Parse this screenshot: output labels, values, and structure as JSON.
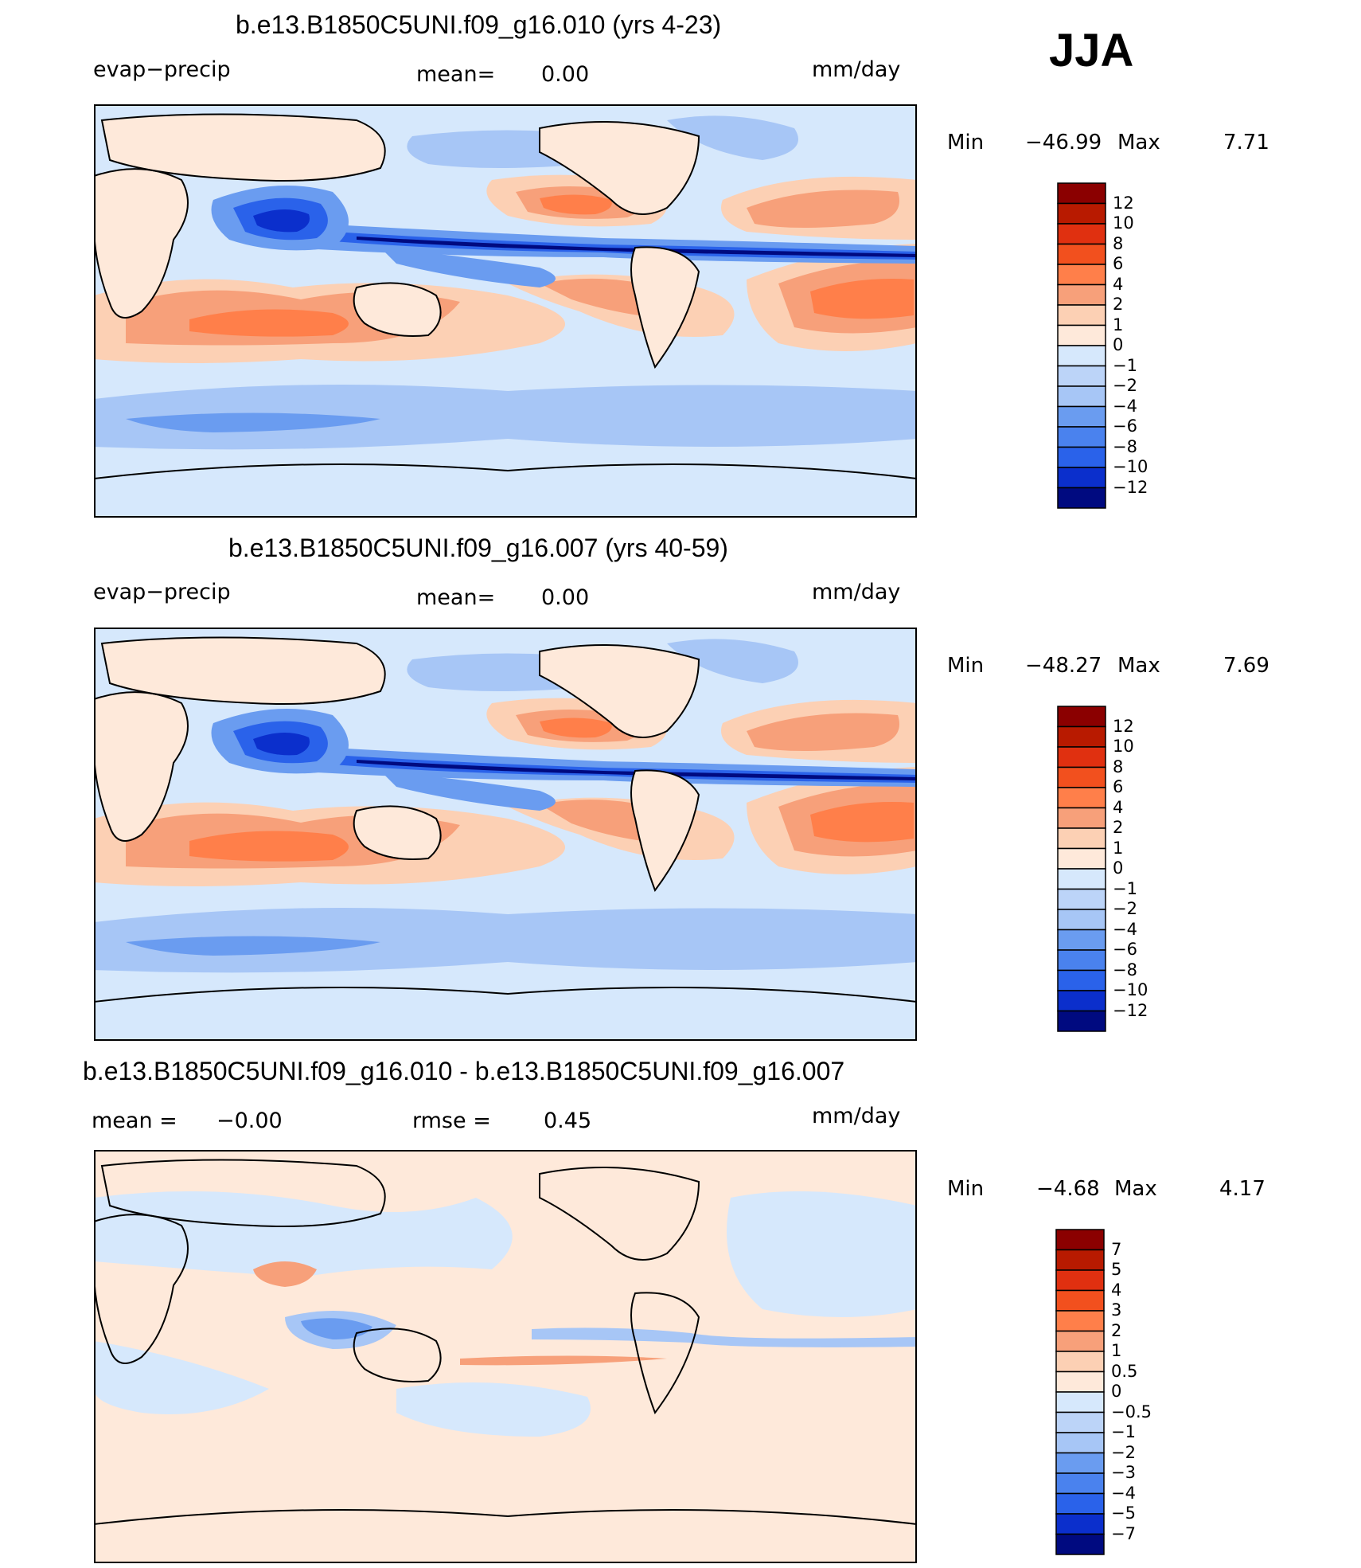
{
  "season": "JJA",
  "colors": {
    "dark_red": "#8b0000",
    "red": "#e03010",
    "orange": "#ff7f4a",
    "salmon": "#f7a07a",
    "peach": "#fcd0b4",
    "light_peach": "#fee9da",
    "light_blue": "#d6e8fc",
    "blue": "#a7c6f6",
    "mid_blue": "#6a9cf0",
    "strong_blue": "#2a62ea",
    "deep_blue": "#0b2fcc",
    "navy": "#000a80",
    "coast": "#000000"
  },
  "panels": [
    {
      "title": "b.e13.B1850C5UNI.f09_g16.010 (yrs 4-23)",
      "left_label": "evap−precip",
      "mean_label": "mean=",
      "mean_value": "0.00",
      "units": "mm/day",
      "min_label": "Min",
      "min_value": "−46.99",
      "max_label": "Max",
      "max_value": "7.71",
      "levels": [
        "12",
        "10",
        "8",
        "6",
        "4",
        "2",
        "1",
        "0",
        "−1",
        "−2",
        "−4",
        "−6",
        "−8",
        "−10",
        "−12"
      ]
    },
    {
      "title": "b.e13.B1850C5UNI.f09_g16.007 (yrs 40-59)",
      "left_label": "evap−precip",
      "mean_label": "mean=",
      "mean_value": "0.00",
      "units": "mm/day",
      "min_label": "Min",
      "min_value": "−48.27",
      "max_label": "Max",
      "max_value": "7.69",
      "levels": [
        "12",
        "10",
        "8",
        "6",
        "4",
        "2",
        "1",
        "0",
        "−1",
        "−2",
        "−4",
        "−6",
        "−8",
        "−10",
        "−12"
      ]
    },
    {
      "title": "b.e13.B1850C5UNI.f09_g16.010 - b.e13.B1850C5UNI.f09_g16.007",
      "mean_label": "mean  =",
      "mean_value": "−0.00",
      "rmse_label": "rmse  =",
      "rmse_value": "0.45",
      "units": "mm/day",
      "min_label": "Min",
      "min_value": "−4.68",
      "max_label": "Max",
      "max_value": "4.17",
      "levels": [
        "7",
        "5",
        "4",
        "3",
        "2",
        "1",
        "0.5",
        "0",
        "−0.5",
        "−1",
        "−2",
        "−3",
        "−4",
        "−5",
        "−7"
      ]
    }
  ]
}
